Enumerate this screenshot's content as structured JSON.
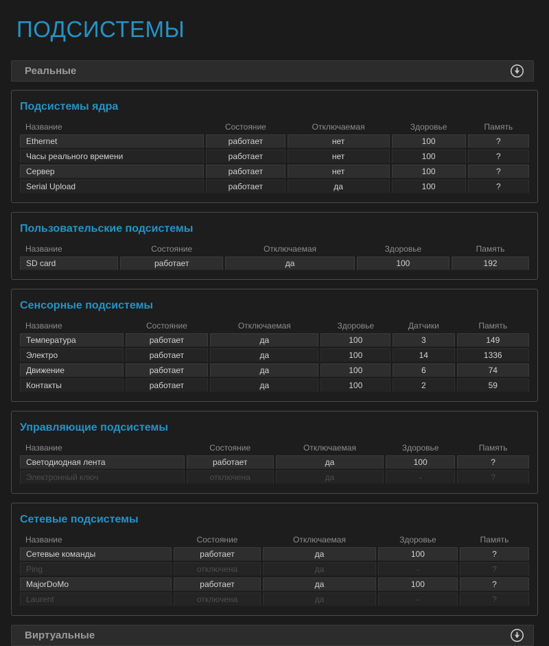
{
  "page_title": "ПОДСИСТЕМЫ",
  "colors": {
    "accent": "#2593c5",
    "bar_background": "#2c2c2c",
    "page_background": "#1b1b1b",
    "row_odd": "#2e2e2e",
    "row_even": "#242424",
    "disabled_text": "#4d4d4d"
  },
  "sections": {
    "top": {
      "label": "Реальные",
      "icon": "circle-arrow-down-icon"
    },
    "bottom": {
      "label": "Виртуальные",
      "icon": "circle-arrow-down-icon"
    }
  },
  "panels": [
    {
      "title": "Подсистемы ядра",
      "columns": [
        "Название",
        "Состояние",
        "Отключаемая",
        "Здоровье",
        "Память"
      ],
      "col_widths": [
        "36%",
        "15.5%",
        "20%",
        "14.5%",
        "12%"
      ],
      "rows": [
        {
          "cells": [
            "Ethernet",
            "работает",
            "нет",
            "100",
            "?"
          ],
          "disabled": false
        },
        {
          "cells": [
            "Часы реального времени",
            "работает",
            "нет",
            "100",
            "?"
          ],
          "disabled": false
        },
        {
          "cells": [
            "Сервер",
            "работает",
            "нет",
            "100",
            "?"
          ],
          "disabled": false
        },
        {
          "cells": [
            "Serial Upload",
            "работает",
            "да",
            "100",
            "?"
          ],
          "disabled": false
        }
      ]
    },
    {
      "title": "Пользовательские подсистемы",
      "columns": [
        "Название",
        "Состояние",
        "Отключаемая",
        "Здоровье",
        "Память"
      ],
      "col_widths": [
        "19%",
        "20%",
        "25%",
        "18%",
        "15%"
      ],
      "rows": [
        {
          "cells": [
            "SD card",
            "работает",
            "да",
            "100",
            "192"
          ],
          "disabled": false
        }
      ]
    },
    {
      "title": "Сенсорные подсистемы",
      "columns": [
        "Название",
        "Состояние",
        "Отключаемая",
        "Здоровье",
        "Датчики",
        "Память"
      ],
      "col_widths": [
        "20%",
        "16%",
        "21%",
        "13.5%",
        "12%",
        "14%"
      ],
      "rows": [
        {
          "cells": [
            "Температура",
            "работает",
            "да",
            "100",
            "3",
            "149"
          ],
          "disabled": false
        },
        {
          "cells": [
            "Электро",
            "работает",
            "да",
            "100",
            "14",
            "1336"
          ],
          "disabled": false
        },
        {
          "cells": [
            "Движение",
            "работает",
            "да",
            "100",
            "6",
            "74"
          ],
          "disabled": false
        },
        {
          "cells": [
            "Контакты",
            "работает",
            "да",
            "100",
            "2",
            "59"
          ],
          "disabled": false
        }
      ]
    },
    {
      "title": "Управляющие подсистемы",
      "columns": [
        "Название",
        "Состояние",
        "Отключаемая",
        "Здоровье",
        "Память"
      ],
      "col_widths": [
        "32%",
        "17%",
        "21%",
        "13.5%",
        "14%"
      ],
      "rows": [
        {
          "cells": [
            "Светодиодная лента",
            "работает",
            "да",
            "100",
            "?"
          ],
          "disabled": false
        },
        {
          "cells": [
            "Электронный ключ",
            "отключена",
            "да",
            "-",
            "?"
          ],
          "disabled": true
        }
      ]
    },
    {
      "title": "Сетевые подсистемы",
      "columns": [
        "Название",
        "Состояние",
        "Отключаемая",
        "Здоровье",
        "Память"
      ],
      "col_widths": [
        "29.5%",
        "17%",
        "22%",
        "15.5%",
        "13.5%"
      ],
      "rows": [
        {
          "cells": [
            "Сетевые команды",
            "работает",
            "да",
            "100",
            "?"
          ],
          "disabled": false
        },
        {
          "cells": [
            "Ping",
            "отключена",
            "да",
            "-",
            "?"
          ],
          "disabled": true
        },
        {
          "cells": [
            "MajorDoMo",
            "работает",
            "да",
            "100",
            "?"
          ],
          "disabled": false
        },
        {
          "cells": [
            "Laurent",
            "отключена",
            "да",
            "-",
            "?"
          ],
          "disabled": true
        }
      ]
    }
  ]
}
